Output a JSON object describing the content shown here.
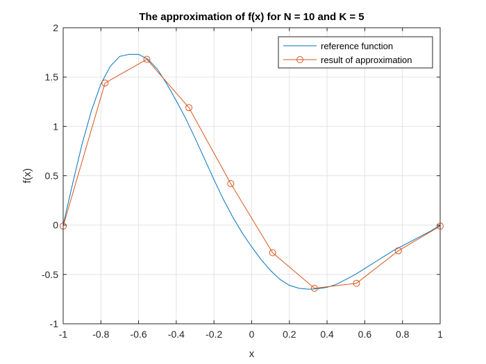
{
  "chart_data": {
    "type": "line",
    "title": "The approximation of f(x) for N = 10 and K = 5",
    "xlabel": "x",
    "ylabel": "f(x)",
    "xlim": [
      -1,
      1
    ],
    "ylim": [
      -1,
      2
    ],
    "xticks": [
      -1,
      -0.8,
      -0.6,
      -0.4,
      -0.2,
      0,
      0.2,
      0.4,
      0.6,
      0.8,
      1
    ],
    "xtick_labels": [
      "-1",
      "-0.8",
      "-0.6",
      "-0.4",
      "-0.2",
      "0",
      "0.2",
      "0.4",
      "0.6",
      "0.8",
      "1"
    ],
    "yticks": [
      -1,
      -0.5,
      0,
      0.5,
      1,
      1.5,
      2
    ],
    "ytick_labels": [
      "-1",
      "-0.5",
      "0",
      "0.5",
      "1",
      "1.5",
      "2"
    ],
    "grid": true,
    "legend_position": "top-right",
    "series": [
      {
        "name": "reference function",
        "color": "#0072BD",
        "marker": "none",
        "x": [
          -1,
          -0.95,
          -0.9,
          -0.85,
          -0.8,
          -0.75,
          -0.7,
          -0.65,
          -0.6,
          -0.55,
          -0.5,
          -0.45,
          -0.4,
          -0.35,
          -0.3,
          -0.25,
          -0.2,
          -0.15,
          -0.1,
          -0.05,
          0,
          0.05,
          0.1,
          0.15,
          0.2,
          0.25,
          0.3,
          0.35,
          0.4,
          0.45,
          0.5,
          0.55,
          0.6,
          0.65,
          0.7,
          0.75,
          0.8,
          0.85,
          0.9,
          0.95,
          1
        ],
        "y": [
          0,
          0.42,
          0.82,
          1.16,
          1.43,
          1.61,
          1.71,
          1.73,
          1.73,
          1.68,
          1.58,
          1.43,
          1.26,
          1.08,
          0.88,
          0.67,
          0.46,
          0.26,
          0.08,
          -0.08,
          -0.22,
          -0.35,
          -0.46,
          -0.55,
          -0.61,
          -0.64,
          -0.65,
          -0.645,
          -0.63,
          -0.6,
          -0.55,
          -0.5,
          -0.44,
          -0.38,
          -0.32,
          -0.26,
          -0.21,
          -0.16,
          -0.11,
          -0.06,
          0
        ]
      },
      {
        "name": "result of approximation",
        "color": "#D95319",
        "marker": "circle",
        "x": [
          -1,
          -0.778,
          -0.556,
          -0.333,
          -0.111,
          0.111,
          0.333,
          0.556,
          0.778,
          1
        ],
        "y": [
          -0.01,
          1.44,
          1.68,
          1.19,
          0.42,
          -0.28,
          -0.64,
          -0.59,
          -0.26,
          -0.01
        ]
      }
    ]
  }
}
